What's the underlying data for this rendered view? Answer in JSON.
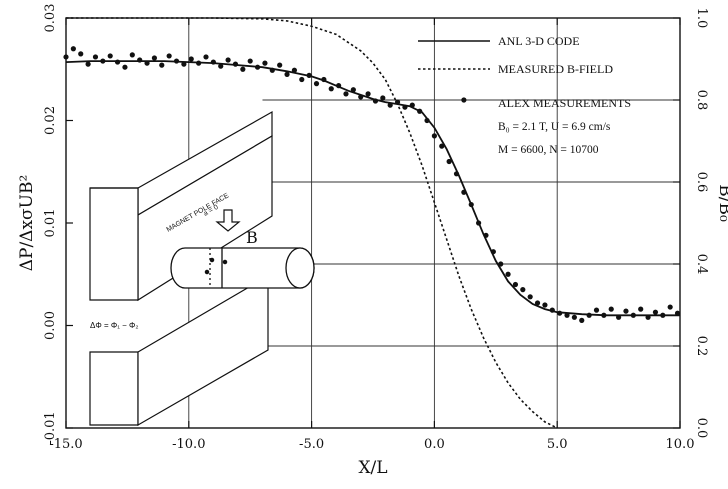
{
  "chart_data": {
    "type": "line",
    "xlabel": "X/L",
    "ylabel": "ΔP/ΔxσUB²",
    "y2label": "B/B₀",
    "xlim": [
      -15,
      10
    ],
    "ylim": [
      -0.01,
      0.03
    ],
    "y2lim": [
      0.0,
      1.0
    ],
    "x_ticks": [
      "-15.0",
      "-10.0",
      "-5.0",
      "0.0",
      "5.0",
      "10.0"
    ],
    "y_ticks": [
      "-0.01",
      "0.00",
      "0.01",
      "0.02",
      "0.03"
    ],
    "y2_ticks": [
      "0.0",
      "0.2",
      "0.4",
      "0.6",
      "0.8",
      "1.0"
    ],
    "legend": [
      {
        "label": "ANL 3-D CODE",
        "style": "solid"
      },
      {
        "label": "MEASURED B-FIELD",
        "style": "dotted"
      },
      {
        "label": "ALEX MEASUREMENTS",
        "style": "markers"
      }
    ],
    "annotations": [
      "B₀ = 2.1 T, U = 6.9 cm/s",
      "M = 6600, N = 10700"
    ],
    "series": [
      {
        "name": "ANL 3-D CODE",
        "style": "solid",
        "axis": "left",
        "x": [
          -15,
          -14,
          -13,
          -12,
          -11,
          -10,
          -9,
          -8,
          -7,
          -6,
          -5,
          -4.5,
          -4,
          -3.5,
          -3,
          -2.5,
          -2,
          -1.5,
          -1,
          -0.5,
          0,
          0.5,
          1,
          1.5,
          2,
          2.5,
          3,
          3.5,
          4,
          4.5,
          5,
          6,
          7,
          8,
          9,
          10
        ],
        "y": [
          0.0257,
          0.0258,
          0.0258,
          0.0258,
          0.0258,
          0.0257,
          0.0256,
          0.0254,
          0.0252,
          0.0248,
          0.0243,
          0.0239,
          0.0234,
          0.0229,
          0.0225,
          0.0221,
          0.0218,
          0.0216,
          0.0214,
          0.0208,
          0.0193,
          0.0172,
          0.0146,
          0.0118,
          0.0089,
          0.0063,
          0.0043,
          0.003,
          0.0021,
          0.0016,
          0.0013,
          0.0011,
          0.001,
          0.001,
          0.001,
          0.001
        ]
      },
      {
        "name": "MEASURED B-FIELD",
        "style": "dotted",
        "axis": "right",
        "x": [
          -15,
          -12,
          -9,
          -7,
          -6,
          -5,
          -4,
          -3,
          -2.5,
          -2,
          -1.5,
          -1,
          -0.5,
          0,
          0.5,
          1,
          1.5,
          2,
          2.5,
          3,
          3.5,
          4,
          4.5,
          5
        ],
        "y": [
          1.0,
          1.0,
          1.0,
          0.998,
          0.993,
          0.98,
          0.96,
          0.92,
          0.89,
          0.85,
          0.79,
          0.72,
          0.64,
          0.55,
          0.46,
          0.37,
          0.29,
          0.22,
          0.16,
          0.11,
          0.07,
          0.04,
          0.015,
          0.0
        ]
      },
      {
        "name": "ALEX MEASUREMENTS",
        "style": "markers",
        "axis": "left",
        "x": [
          -15.0,
          -14.7,
          -14.4,
          -14.1,
          -13.8,
          -13.5,
          -13.2,
          -12.9,
          -12.6,
          -12.3,
          -12.0,
          -11.7,
          -11.4,
          -11.1,
          -10.8,
          -10.5,
          -10.2,
          -9.9,
          -9.6,
          -9.3,
          -9.0,
          -8.7,
          -8.4,
          -8.1,
          -7.8,
          -7.5,
          -7.2,
          -6.9,
          -6.6,
          -6.3,
          -6.0,
          -5.7,
          -5.4,
          -5.1,
          -4.8,
          -4.5,
          -4.2,
          -3.9,
          -3.6,
          -3.3,
          -3.0,
          -2.7,
          -2.4,
          -2.1,
          -1.8,
          -1.5,
          -1.2,
          -0.9,
          -0.6,
          -0.3,
          0.0,
          0.3,
          0.6,
          0.9,
          1.2,
          1.5,
          1.8,
          2.1,
          2.4,
          2.7,
          3.0,
          3.3,
          3.6,
          3.9,
          4.2,
          4.5,
          4.8,
          5.1,
          5.4,
          5.7,
          6.0,
          6.3,
          6.6,
          6.9,
          7.2,
          7.5,
          7.8,
          8.1,
          8.4,
          8.7,
          9.0,
          9.3,
          9.6,
          9.9,
          1.2
        ],
        "y": [
          0.0262,
          0.027,
          0.0265,
          0.0255,
          0.0262,
          0.0258,
          0.0263,
          0.0257,
          0.0252,
          0.0264,
          0.0259,
          0.0256,
          0.0261,
          0.0254,
          0.0263,
          0.0258,
          0.0255,
          0.026,
          0.0256,
          0.0262,
          0.0257,
          0.0253,
          0.0259,
          0.0255,
          0.025,
          0.0258,
          0.0252,
          0.0256,
          0.0249,
          0.0254,
          0.0245,
          0.0249,
          0.024,
          0.0244,
          0.0236,
          0.024,
          0.0231,
          0.0234,
          0.0226,
          0.023,
          0.0223,
          0.0226,
          0.0219,
          0.0222,
          0.0215,
          0.0218,
          0.0213,
          0.0215,
          0.0209,
          0.02,
          0.0185,
          0.0175,
          0.016,
          0.0148,
          0.013,
          0.0118,
          0.01,
          0.0088,
          0.0072,
          0.006,
          0.005,
          0.004,
          0.0035,
          0.0028,
          0.0022,
          0.002,
          0.0015,
          0.0012,
          0.001,
          0.0008,
          0.0005,
          0.001,
          0.0015,
          0.001,
          0.0016,
          0.0008,
          0.0014,
          0.001,
          0.0016,
          0.0008,
          0.0013,
          0.001,
          0.0018,
          0.0012,
          0.022
        ]
      }
    ]
  },
  "diagram": {
    "pole_face_label": "MAGNET POLE FACE",
    "field_arrow_label": "B",
    "dp_label": "ΔΦ = Φ₁ − Φ₂"
  }
}
